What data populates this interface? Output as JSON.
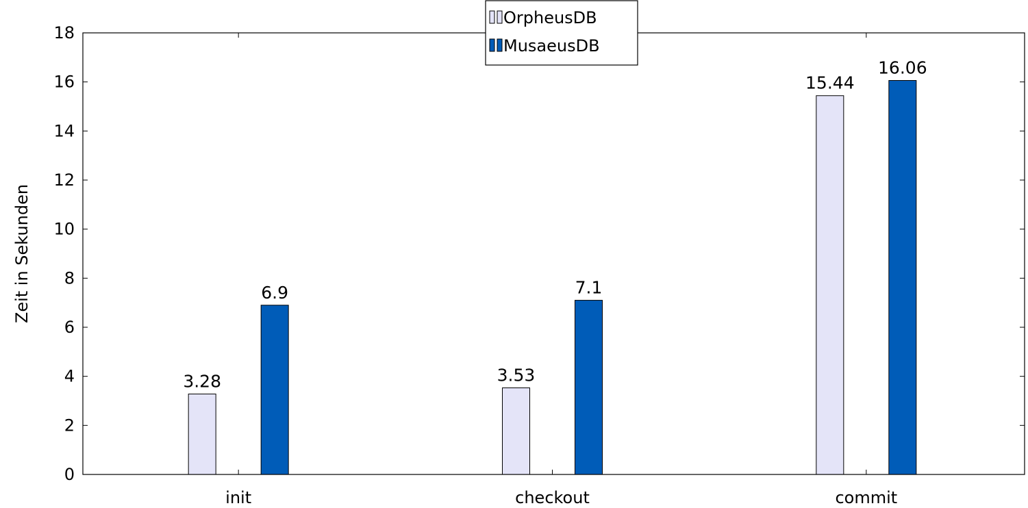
{
  "chart_data": {
    "type": "bar",
    "categories": [
      "init",
      "checkout",
      "commit"
    ],
    "series": [
      {
        "name": "OrpheusDB",
        "values": [
          3.28,
          3.53,
          15.44
        ],
        "color": "#e4e4f8"
      },
      {
        "name": "MusaeusDB",
        "values": [
          6.9,
          7.1,
          16.06
        ],
        "color": "#005cb8"
      }
    ],
    "ylabel": "Zeit in Sekunden",
    "xlabel": "",
    "ylim": [
      0,
      18
    ],
    "yticks": [
      0,
      2,
      4,
      6,
      8,
      10,
      12,
      14,
      16,
      18
    ],
    "data_labels": [
      [
        "3.28",
        "3.53",
        "15.44"
      ],
      [
        "6.9",
        "7.1",
        "16.06"
      ]
    ],
    "grid": false,
    "legend_position": "top-center"
  }
}
